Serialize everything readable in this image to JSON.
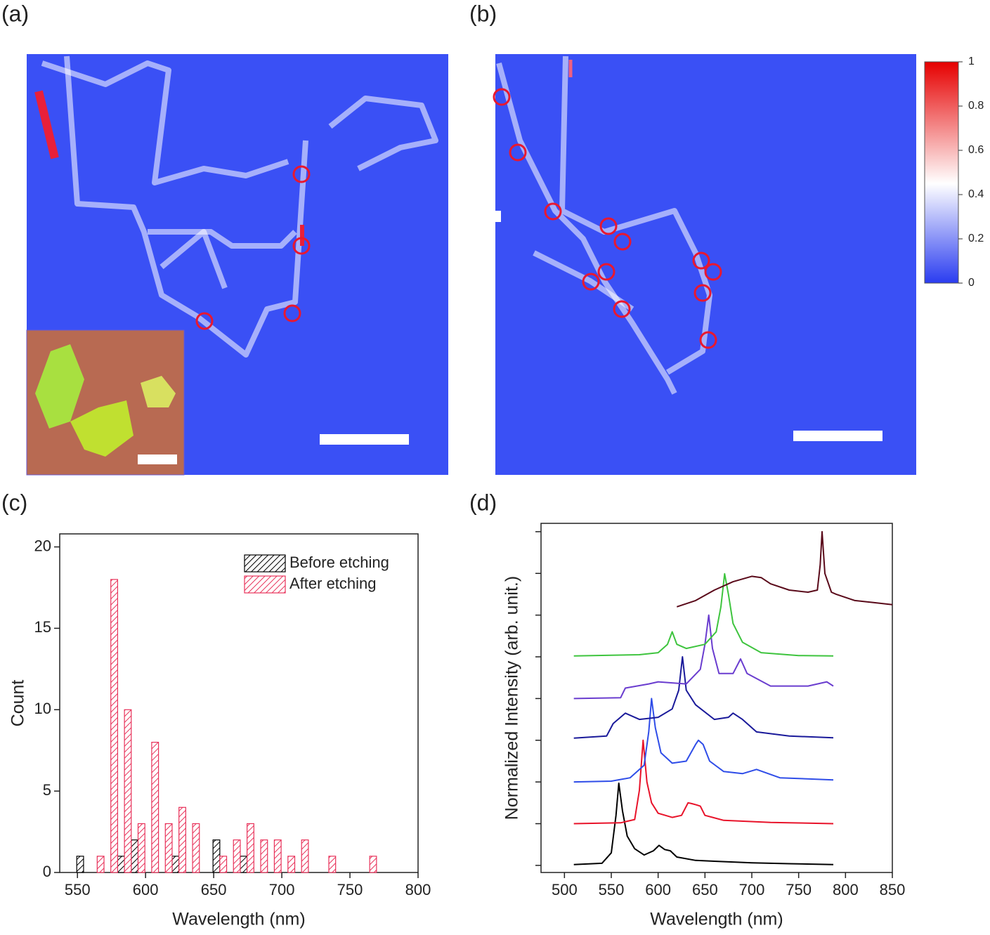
{
  "panel_labels": [
    "(a)",
    "(b)",
    "(c)",
    "(d)"
  ],
  "colorbar": {
    "lim": [
      0,
      1
    ],
    "ticks": [
      0,
      0.2,
      0.4,
      0.6,
      0.8,
      1
    ]
  },
  "chart_data": [
    {
      "type": "bar",
      "xlabel": "Wavelength (nm)",
      "ylabel": "Count",
      "xlim": [
        537,
        800
      ],
      "xticks": [
        550,
        600,
        650,
        700,
        750,
        800
      ],
      "ylim": [
        0,
        20.8
      ],
      "yticks": [
        0,
        5,
        10,
        15,
        20
      ],
      "bar_width": 5,
      "legend": "upper right",
      "series": [
        {
          "name": "Before etching",
          "color": "#000000",
          "x": [
            552,
            582,
            592,
            622,
            652,
            672
          ],
          "values": [
            1,
            1,
            2,
            1,
            2,
            1
          ]
        },
        {
          "name": "After etching",
          "color": "#e8325a",
          "x": [
            567,
            577,
            587,
            597,
            607,
            617,
            627,
            637,
            657,
            667,
            677,
            687,
            697,
            707,
            717,
            737,
            767
          ],
          "values": [
            1,
            18,
            10,
            3,
            8,
            3,
            4,
            3,
            1,
            2,
            3,
            2,
            2,
            1,
            2,
            1,
            1
          ]
        }
      ]
    },
    {
      "type": "line",
      "xlabel": "Wavelength (nm)",
      "ylabel": "Normalized Intensity (arb. unit.)",
      "xlim": [
        475,
        850
      ],
      "xticks": [
        500,
        550,
        600,
        650,
        700,
        750,
        800,
        850
      ],
      "ylim": [
        -0.17,
        8.2
      ],
      "yticks": [
        0,
        1,
        2,
        3,
        4,
        5,
        6,
        7,
        8
      ],
      "ytick_labels": false,
      "series": [
        {
          "color": "#000000",
          "x": [
            510,
            540,
            550,
            555,
            558,
            562,
            567,
            575,
            585,
            595,
            601,
            607,
            613,
            620,
            640,
            660,
            700,
            740,
            787
          ],
          "values": [
            0.02,
            0.05,
            0.3,
            1.2,
            1.97,
            1.3,
            0.7,
            0.4,
            0.25,
            0.35,
            0.48,
            0.38,
            0.35,
            0.2,
            0.12,
            0.1,
            0.06,
            0.04,
            0.02
          ]
        },
        {
          "color": "#e8132a",
          "x": [
            510,
            560,
            575,
            580,
            584,
            588,
            593,
            600,
            615,
            625,
            632,
            636,
            641,
            645,
            650,
            670,
            720,
            787
          ],
          "values": [
            1.0,
            1.02,
            1.1,
            1.8,
            3.0,
            2.0,
            1.5,
            1.25,
            1.15,
            1.2,
            1.5,
            1.48,
            1.45,
            1.42,
            1.2,
            1.08,
            1.03,
            1.0
          ]
        },
        {
          "color": "#2f4de8",
          "x": [
            510,
            550,
            570,
            585,
            590,
            593,
            597,
            603,
            615,
            630,
            640,
            643,
            648,
            655,
            670,
            690,
            705,
            730,
            787
          ],
          "values": [
            2.0,
            2.02,
            2.1,
            2.4,
            3.2,
            4.0,
            3.3,
            2.7,
            2.45,
            2.5,
            2.9,
            3.0,
            2.9,
            2.5,
            2.25,
            2.2,
            2.3,
            2.1,
            2.05
          ]
        },
        {
          "color": "#1a1a9a",
          "x": [
            510,
            545,
            552,
            565,
            580,
            600,
            615,
            622,
            626,
            630,
            640,
            660,
            675,
            680,
            690,
            705,
            740,
            787
          ],
          "values": [
            3.05,
            3.1,
            3.4,
            3.65,
            3.5,
            3.55,
            3.75,
            4.2,
            5.0,
            4.2,
            3.85,
            3.5,
            3.55,
            3.65,
            3.5,
            3.2,
            3.1,
            3.06
          ]
        },
        {
          "color": "#6a3dcf",
          "x": [
            510,
            560,
            565,
            590,
            600,
            630,
            645,
            650,
            654,
            658,
            665,
            680,
            688,
            695,
            720,
            760,
            780,
            787
          ],
          "values": [
            4.0,
            4.02,
            4.25,
            4.35,
            4.4,
            4.35,
            4.7,
            5.3,
            6.0,
            5.2,
            4.6,
            4.6,
            4.95,
            4.6,
            4.3,
            4.3,
            4.4,
            4.3
          ]
        },
        {
          "color": "#3ec43e",
          "x": [
            510,
            580,
            600,
            610,
            615,
            620,
            630,
            650,
            662,
            667,
            671,
            675,
            680,
            690,
            710,
            750,
            787
          ],
          "values": [
            5.02,
            5.05,
            5.1,
            5.3,
            5.6,
            5.3,
            5.2,
            5.3,
            5.6,
            6.2,
            6.99,
            6.5,
            5.8,
            5.35,
            5.1,
            5.03,
            5.02
          ]
        },
        {
          "color": "#5a0a1a",
          "x": [
            620,
            640,
            660,
            680,
            700,
            710,
            720,
            740,
            760,
            770,
            773,
            775,
            778,
            785,
            790,
            810,
            830,
            850
          ],
          "values": [
            6.2,
            6.35,
            6.6,
            6.8,
            6.93,
            6.9,
            6.75,
            6.6,
            6.55,
            6.6,
            7.2,
            8.0,
            7.0,
            6.55,
            6.5,
            6.35,
            6.3,
            6.25
          ]
        }
      ]
    }
  ]
}
